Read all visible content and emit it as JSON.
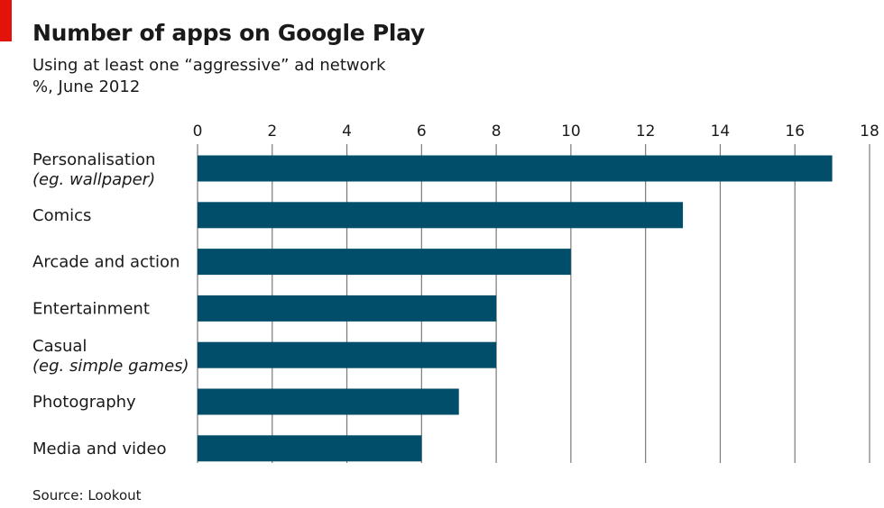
{
  "colors": {
    "accent": "#e3120b",
    "bar": "#004e6a",
    "grid": "#7a7a7a"
  },
  "header": {
    "title": "Number of apps on Google Play",
    "subtitle_line1": "Using at least one “aggressive” ad network",
    "subtitle_line2": "%, June 2012"
  },
  "footer": {
    "source": "Source: Lookout"
  },
  "chart_data": {
    "type": "bar",
    "orientation": "horizontal",
    "title": "Number of apps on Google Play",
    "subtitle": "Using at least one “aggressive” ad network",
    "unit": "%, June 2012",
    "xlabel": "",
    "ylabel": "",
    "xlim": [
      0,
      18
    ],
    "xticks": [
      0,
      2,
      4,
      6,
      8,
      10,
      12,
      14,
      16,
      18
    ],
    "tick_labels": [
      "0",
      "2",
      "4",
      "6",
      "8",
      "10",
      "12",
      "14",
      "16",
      "18"
    ],
    "xaxis_position": "top",
    "grid": true,
    "legend": "none",
    "categories": [
      {
        "label": "Personalisation",
        "sublabel": "(eg. wallpaper)",
        "value": 17
      },
      {
        "label": "Comics",
        "sublabel": "",
        "value": 13
      },
      {
        "label": "Arcade and action",
        "sublabel": "",
        "value": 10
      },
      {
        "label": "Entertainment",
        "sublabel": "",
        "value": 8
      },
      {
        "label": "Casual",
        "sublabel": "(eg. simple games)",
        "value": 8
      },
      {
        "label": "Photography",
        "sublabel": "",
        "value": 7
      },
      {
        "label": "Media and video",
        "sublabel": "",
        "value": 6
      }
    ],
    "source": "Source: Lookout"
  }
}
